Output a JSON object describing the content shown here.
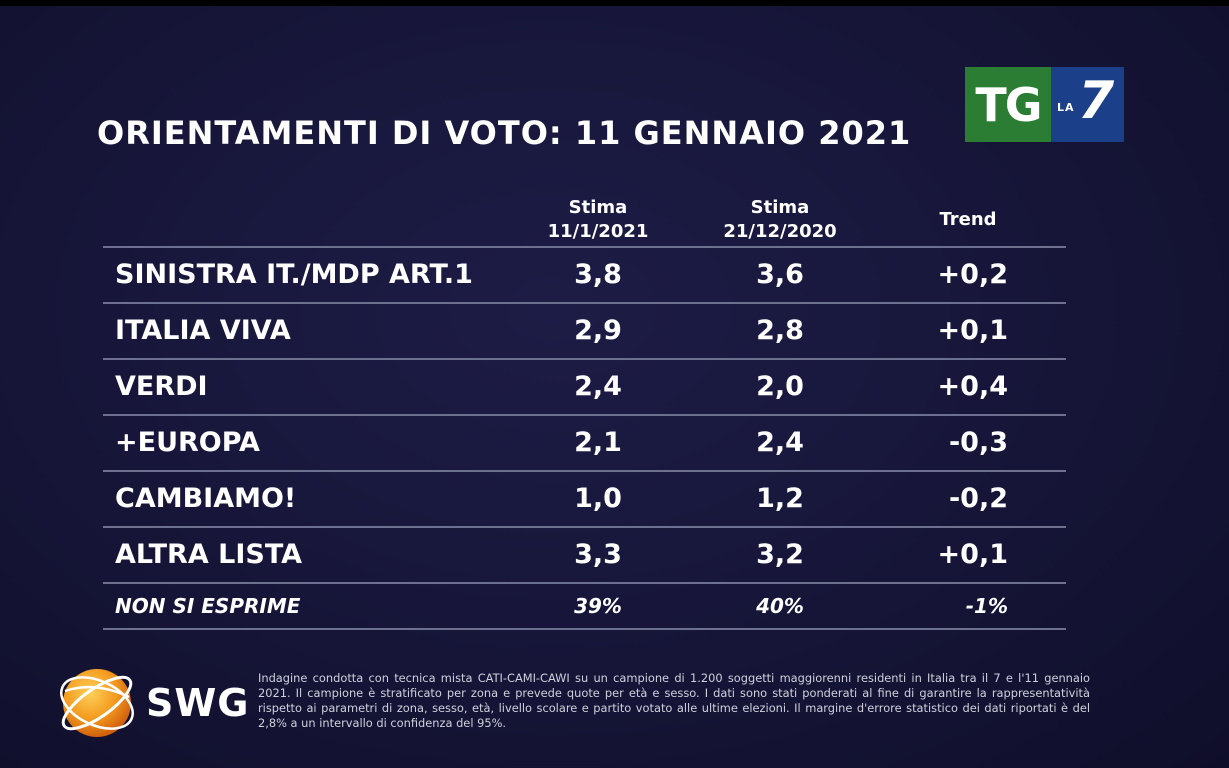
{
  "title": "ORIENTAMENTI DI VOTO: 11 GENNAIO 2021",
  "logo": {
    "tg": "TG",
    "la": "LA",
    "seven": "7"
  },
  "columns": {
    "stima1_line1": "Stima",
    "stima1_line2": "11/1/2021",
    "stima2_line1": "Stima",
    "stima2_line2": "21/12/2020",
    "trend": "Trend"
  },
  "chart_data": {
    "type": "table",
    "title": "ORIENTAMENTI DI VOTO: 11 GENNAIO 2021",
    "columns": [
      "Stima 11/1/2021",
      "Stima 21/12/2020",
      "Trend"
    ],
    "rows": [
      {
        "name": "SINISTRA IT./MDP ART.1",
        "stima_11_1_2021": "3,8",
        "stima_21_12_2020": "3,6",
        "trend": "+0,2"
      },
      {
        "name": "ITALIA VIVA",
        "stima_11_1_2021": "2,9",
        "stima_21_12_2020": "2,8",
        "trend": "+0,1"
      },
      {
        "name": "VERDI",
        "stima_11_1_2021": "2,4",
        "stima_21_12_2020": "2,0",
        "trend": "+0,4"
      },
      {
        "name": "+EUROPA",
        "stima_11_1_2021": "2,1",
        "stima_21_12_2020": "2,4",
        "trend": "-0,3"
      },
      {
        "name": "CAMBIAMO!",
        "stima_11_1_2021": "1,0",
        "stima_21_12_2020": "1,2",
        "trend": "-0,2"
      },
      {
        "name": "ALTRA LISTA",
        "stima_11_1_2021": "3,3",
        "stima_21_12_2020": "3,2",
        "trend": "+0,1"
      },
      {
        "name": "NON SI ESPRIME",
        "stima_11_1_2021": "39%",
        "stima_21_12_2020": "40%",
        "trend": "-1%"
      }
    ]
  },
  "brand": {
    "name": "SWG"
  },
  "footnote": "Indagine condotta con tecnica mista CATI-CAMI-CAWI su un campione di 1.200 soggetti maggiorenni residenti in Italia tra il 7 e l'11 gennaio 2021. Il campione è stratificato per zona e prevede quote per età e sesso. I dati sono stati ponderati al fine di garantire la rappresentatività rispetto ai parametri di zona, sesso, età, livello scolare e partito votato alle ultime elezioni. Il margine d'errore statistico dei dati riportati è del 2,8% a un intervallo di confidenza del 95%.",
  "colors": {
    "background": "#161538",
    "tg_green": "#2a7d33",
    "la7_blue": "#1b3f88",
    "swg_orange": "#f39a1e",
    "rule": "#6e7090"
  }
}
